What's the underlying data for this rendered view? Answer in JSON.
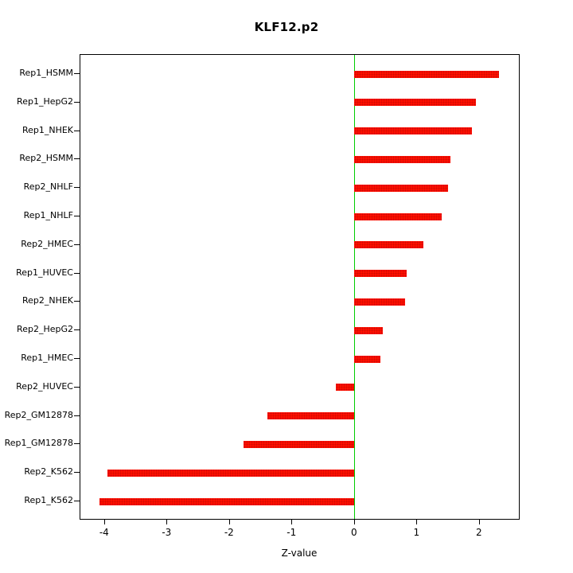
{
  "chart_data": {
    "type": "bar",
    "orientation": "horizontal",
    "title": "KLF12.p2",
    "xlabel": "Z-value",
    "ylabel": "",
    "categories": [
      "Rep1_HSMM",
      "Rep1_HepG2",
      "Rep1_NHEK",
      "Rep2_HSMM",
      "Rep2_NHLF",
      "Rep1_NHLF",
      "Rep2_HMEC",
      "Rep1_HUVEC",
      "Rep2_NHEK",
      "Rep2_HepG2",
      "Rep1_HMEC",
      "Rep2_HUVEC",
      "Rep2_GM12878",
      "Rep1_GM12878",
      "Rep2_K562",
      "Rep1_K562"
    ],
    "values": [
      2.32,
      1.95,
      1.89,
      1.55,
      1.5,
      1.4,
      1.11,
      0.85,
      0.82,
      0.46,
      0.42,
      -0.29,
      -1.39,
      -1.77,
      -3.95,
      -4.08
    ],
    "xlim": [
      -4.38,
      2.64
    ],
    "xticks": [
      -4,
      -3,
      -2,
      -1,
      0,
      1,
      2
    ],
    "bar_color": "#ff0f00",
    "zero_line_color": "#00cd00",
    "axis_color": "#000000",
    "grid": false,
    "legend": false
  }
}
